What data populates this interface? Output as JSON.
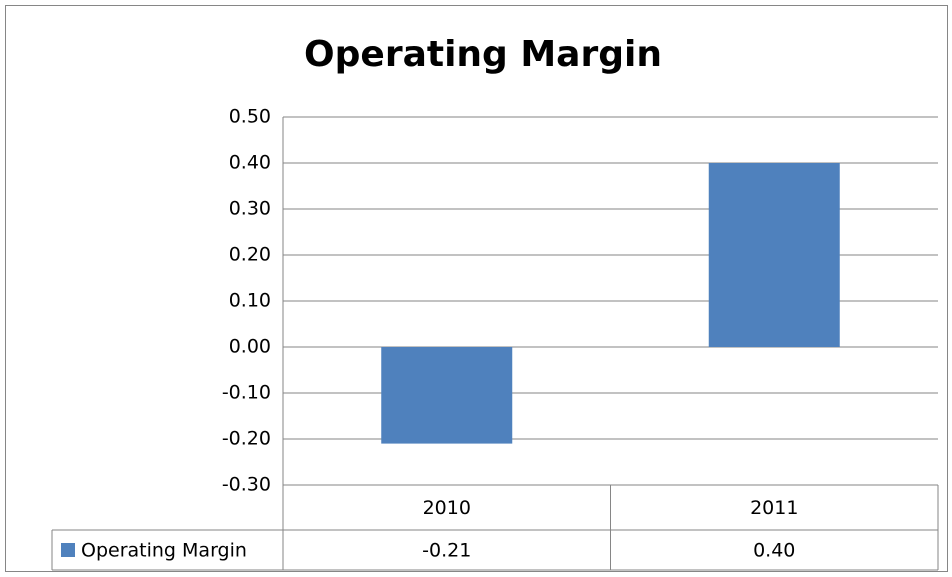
{
  "chart_data": {
    "type": "bar",
    "title": "Operating Margin",
    "categories": [
      "2010",
      "2011"
    ],
    "series": [
      {
        "name": "Operating Margin",
        "color": "#4f81bd",
        "values": [
          -0.21,
          0.4
        ],
        "value_labels": [
          "-0.21",
          "0.40"
        ]
      }
    ],
    "ylim": [
      -0.3,
      0.5
    ],
    "yticks": [
      {
        "value": -0.3,
        "label": "-0.30"
      },
      {
        "value": -0.2,
        "label": "-0.20"
      },
      {
        "value": -0.1,
        "label": "-0.10"
      },
      {
        "value": 0,
        "label": "0.00"
      },
      {
        "value": 0.1,
        "label": "0.10"
      },
      {
        "value": 0.2,
        "label": "0.20"
      },
      {
        "value": 0.3,
        "label": "0.30"
      },
      {
        "value": 0.4,
        "label": "0.40"
      },
      {
        "value": 0.5,
        "label": "0.50"
      }
    ],
    "grid": true,
    "data_table": true
  }
}
